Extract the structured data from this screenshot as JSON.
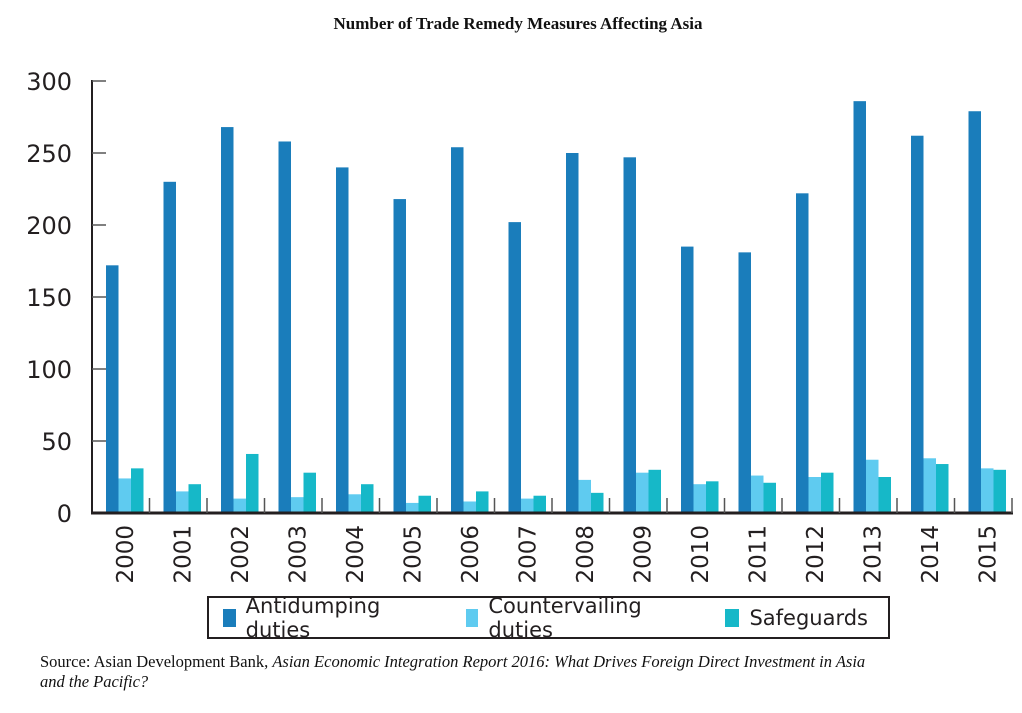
{
  "chart_data": {
    "type": "bar",
    "title": "Number of Trade Remedy Measures Affecting Asia",
    "xlabel": "",
    "ylabel": "",
    "ylim": [
      0,
      300
    ],
    "yticks": [
      0,
      50,
      100,
      150,
      200,
      250,
      300
    ],
    "grid": false,
    "legend_position": "bottom",
    "categories": [
      "2000",
      "2001",
      "2002",
      "2003",
      "2004",
      "2005",
      "2006",
      "2007",
      "2008",
      "2009",
      "2010",
      "2011",
      "2012",
      "2013",
      "2014",
      "2015"
    ],
    "series": [
      {
        "name": "Antidumping duties",
        "color": "#1a7dbb",
        "values": [
          172,
          230,
          268,
          258,
          240,
          218,
          254,
          202,
          250,
          247,
          185,
          181,
          222,
          286,
          262,
          279
        ]
      },
      {
        "name": "Countervailing duties",
        "color": "#5fcbf0",
        "values": [
          24,
          15,
          10,
          11,
          13,
          7,
          8,
          10,
          23,
          28,
          20,
          26,
          25,
          37,
          38,
          31
        ]
      },
      {
        "name": "Safeguards",
        "color": "#16b8c8",
        "values": [
          31,
          20,
          41,
          28,
          20,
          12,
          15,
          12,
          14,
          30,
          22,
          21,
          28,
          25,
          34,
          30
        ]
      }
    ]
  },
  "source": {
    "prefix": "Source: Asian Development Bank, ",
    "italic": "Asian Economic Integration Report 2016: What Drives Foreign Direct Investment in Asia and the Pacific?"
  }
}
